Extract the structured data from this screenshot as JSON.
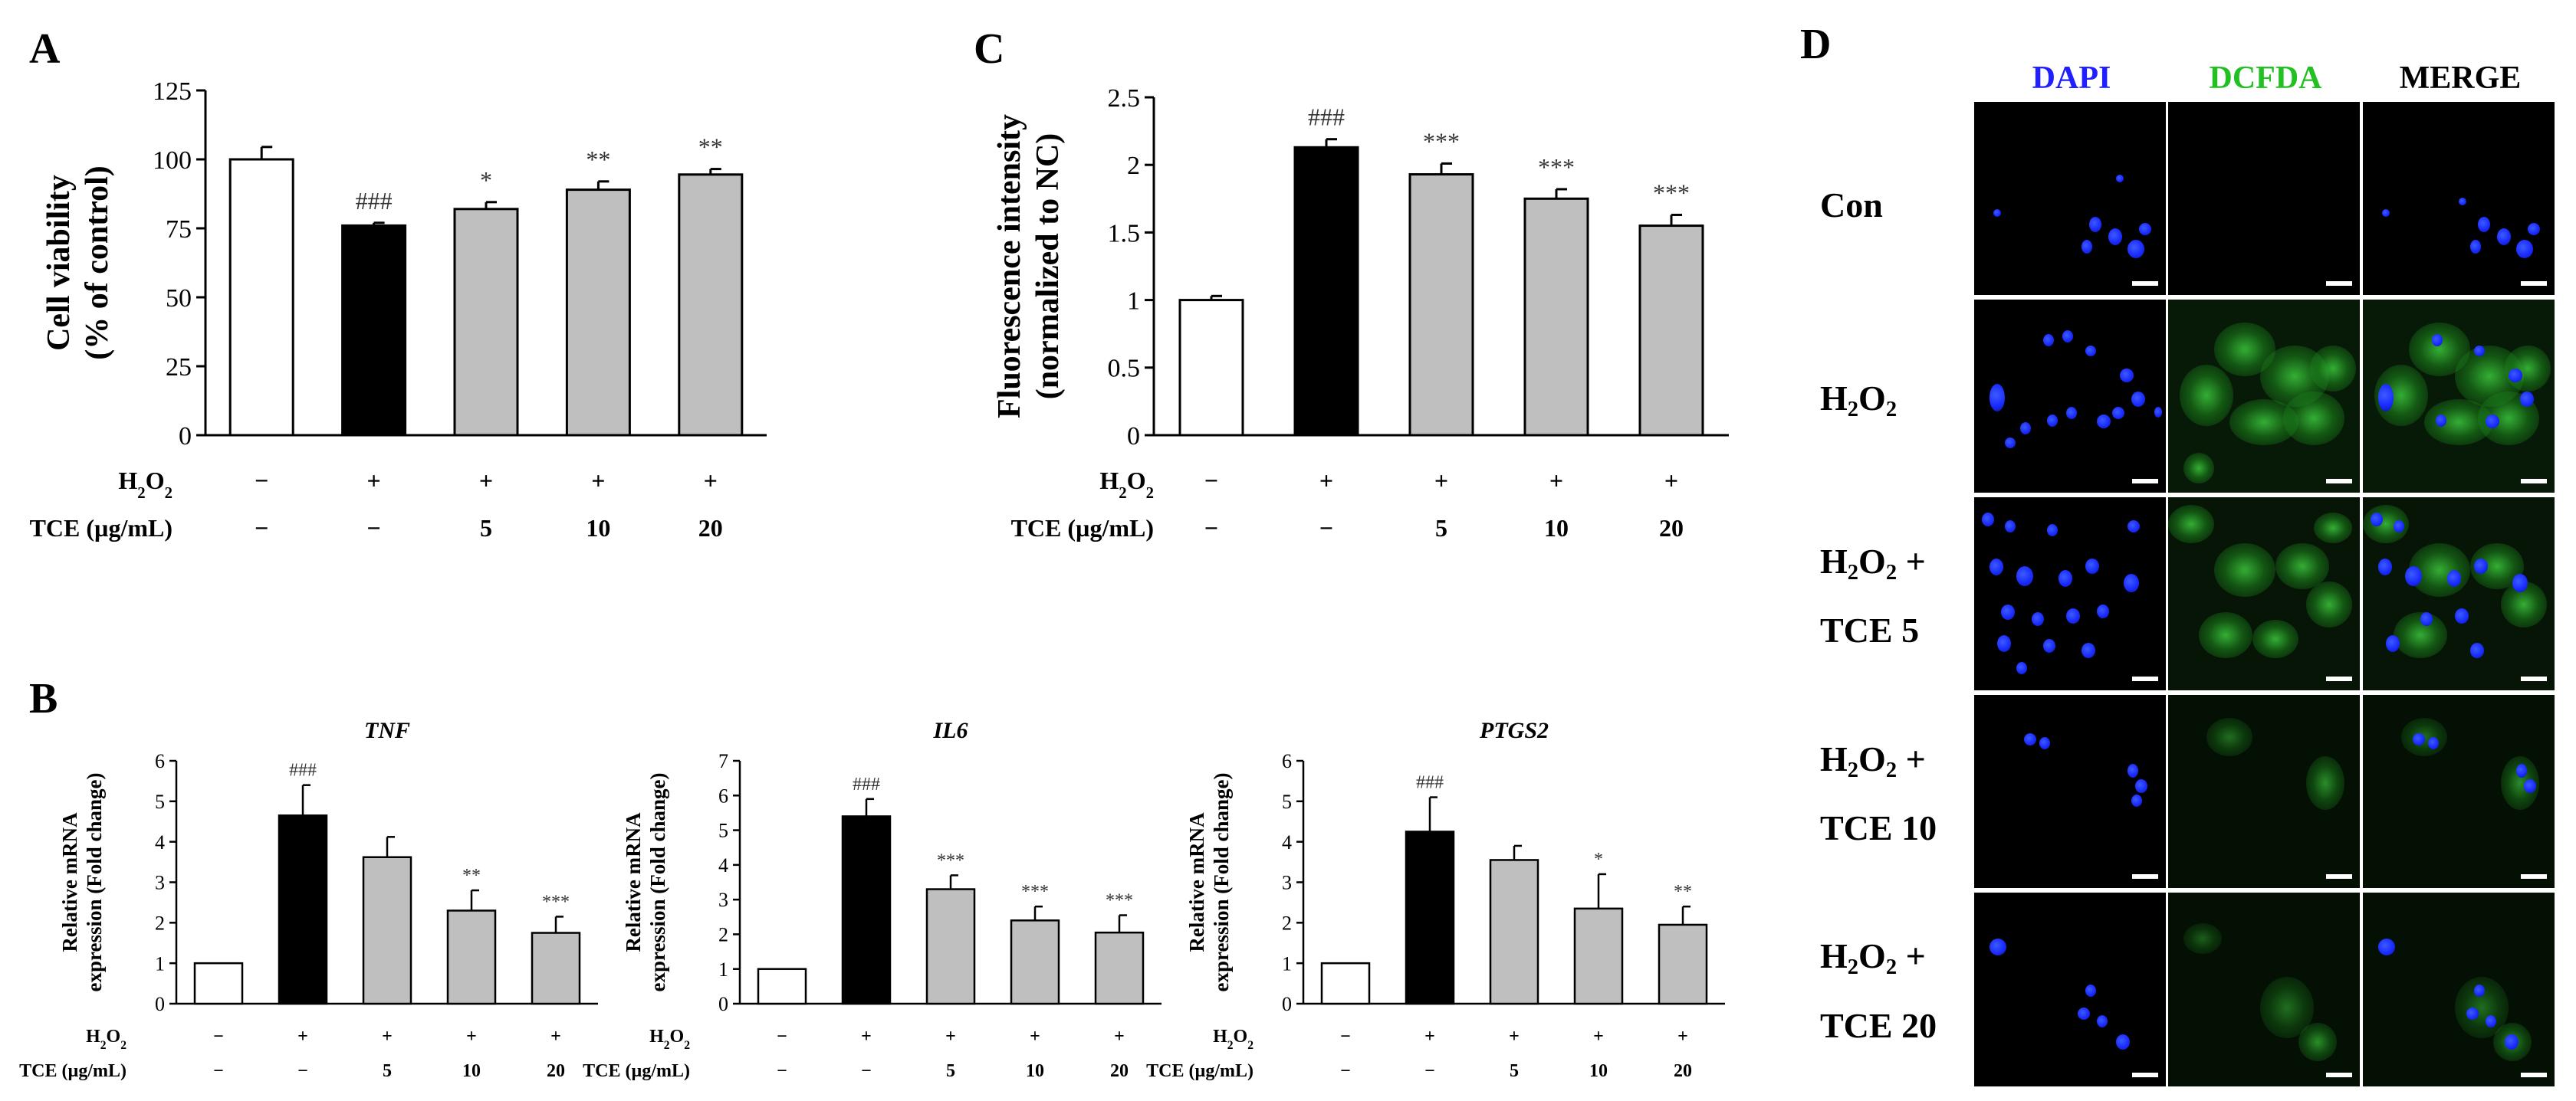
{
  "panels": {
    "A": {
      "letter": "A",
      "ylabel_line1": "Cell viability",
      "ylabel_line2": "(% of control)",
      "h2o2_label": "H2O2",
      "tce_label": "TCE (µg/mL)",
      "h2o2_row": [
        "−",
        "+",
        "+",
        "+",
        "+"
      ],
      "tce_row": [
        "−",
        "−",
        "5",
        "10",
        "20"
      ]
    },
    "B": {
      "letter": "B",
      "h2o2_label": "H2O2",
      "tce_label": "TCE (µg/mL)",
      "h2o2_row": [
        "−",
        "+",
        "+",
        "+",
        "+"
      ],
      "tce_row": [
        "−",
        "−",
        "5",
        "10",
        "20"
      ],
      "ylabel_line1": "Relative mRNA",
      "ylabel_line2": "expression (Fold change)"
    },
    "C": {
      "letter": "C",
      "ylabel_line1": "Fluorescence intensity",
      "ylabel_line2": "(normalized to NC)",
      "h2o2_label": "H2O2",
      "tce_label": "TCE (µg/mL)",
      "h2o2_row": [
        "−",
        "+",
        "+",
        "+",
        "+"
      ],
      "tce_row": [
        "−",
        "−",
        "5",
        "10",
        "20"
      ]
    },
    "D": {
      "letter": "D",
      "columns": [
        "DAPI",
        "DCFDA",
        "MERGE"
      ],
      "column_colors": [
        "#1f1fff",
        "#22c022",
        "#000000"
      ],
      "rows": [
        {
          "line1": "Con",
          "line2": ""
        },
        {
          "line1": "H2O2",
          "line2": ""
        },
        {
          "line1": "H2O2 +",
          "line2": "TCE 5"
        },
        {
          "line1": "H2O2 +",
          "line2": "TCE 10"
        },
        {
          "line1": "H2O2 +",
          "line2": "TCE 20"
        }
      ]
    }
  },
  "chart_data": [
    {
      "id": "A",
      "type": "bar",
      "title": "",
      "categories": [
        "NC",
        "H2O2",
        "H2O2+TCE 5",
        "H2O2+TCE 10",
        "H2O2+TCE 20"
      ],
      "values": [
        100,
        76,
        82,
        89,
        94.5
      ],
      "errors": [
        4.5,
        1,
        2.5,
        3,
        2
      ],
      "significance": [
        "",
        "###",
        "*",
        "**",
        "**"
      ],
      "bar_colors": [
        "#ffffff",
        "#000000",
        "#bfbfbf",
        "#bfbfbf",
        "#bfbfbf"
      ],
      "ylim": [
        0,
        125
      ],
      "yticks": [
        "0",
        "25",
        "50",
        "75",
        "100",
        "125"
      ],
      "ylabel": "Cell viability (% of control)"
    },
    {
      "id": "B-TNF",
      "type": "bar",
      "title": "TNF",
      "categories": [
        "NC",
        "H2O2",
        "H2O2+TCE 5",
        "H2O2+TCE 10",
        "H2O2+TCE 20"
      ],
      "values": [
        1,
        4.65,
        3.62,
        2.3,
        1.75
      ],
      "errors": [
        0,
        0.75,
        0.5,
        0.5,
        0.4
      ],
      "significance": [
        "",
        "###",
        "",
        "**",
        "***"
      ],
      "bar_colors": [
        "#ffffff",
        "#000000",
        "#bfbfbf",
        "#bfbfbf",
        "#bfbfbf"
      ],
      "ylim": [
        0,
        6
      ],
      "yticks": [
        "0",
        "1",
        "2",
        "3",
        "4",
        "5",
        "6"
      ],
      "ylabel": "Relative mRNA expression (Fold change)"
    },
    {
      "id": "B-IL6",
      "type": "bar",
      "title": "IL6",
      "categories": [
        "NC",
        "H2O2",
        "H2O2+TCE 5",
        "H2O2+TCE 10",
        "H2O2+TCE 20"
      ],
      "values": [
        1,
        5.4,
        3.3,
        2.4,
        2.05
      ],
      "errors": [
        0,
        0.5,
        0.4,
        0.4,
        0.5
      ],
      "significance": [
        "",
        "###",
        "***",
        "***",
        "***"
      ],
      "bar_colors": [
        "#ffffff",
        "#000000",
        "#bfbfbf",
        "#bfbfbf",
        "#bfbfbf"
      ],
      "ylim": [
        0,
        7
      ],
      "yticks": [
        "0",
        "1",
        "2",
        "3",
        "4",
        "5",
        "6",
        "7"
      ],
      "ylabel": "Relative mRNA expression (Fold change)"
    },
    {
      "id": "B-PTGS2",
      "type": "bar",
      "title": "PTGS2",
      "categories": [
        "NC",
        "H2O2",
        "H2O2+TCE 5",
        "H2O2+TCE 10",
        "H2O2+TCE 20"
      ],
      "values": [
        1,
        4.25,
        3.55,
        2.35,
        1.95
      ],
      "errors": [
        0,
        0.85,
        0.35,
        0.85,
        0.45
      ],
      "significance": [
        "",
        "###",
        "",
        "*",
        "**"
      ],
      "bar_colors": [
        "#ffffff",
        "#000000",
        "#bfbfbf",
        "#bfbfbf",
        "#bfbfbf"
      ],
      "ylim": [
        0,
        6
      ],
      "yticks": [
        "0",
        "1",
        "2",
        "3",
        "4",
        "5",
        "6"
      ],
      "ylabel": "Relative mRNA expression (Fold change)"
    },
    {
      "id": "C",
      "type": "bar",
      "title": "",
      "categories": [
        "NC",
        "H2O2",
        "H2O2+TCE 5",
        "H2O2+TCE 10",
        "H2O2+TCE 20"
      ],
      "values": [
        1.0,
        2.13,
        1.93,
        1.75,
        1.55
      ],
      "errors": [
        0.03,
        0.06,
        0.08,
        0.07,
        0.08
      ],
      "significance": [
        "",
        "###",
        "***",
        "***",
        "***"
      ],
      "bar_colors": [
        "#ffffff",
        "#000000",
        "#bfbfbf",
        "#bfbfbf",
        "#bfbfbf"
      ],
      "ylim": [
        0,
        2.5
      ],
      "yticks": [
        "0",
        "0.5",
        "1",
        "1.5",
        "2",
        "2.5"
      ],
      "ylabel": "Fluorescence intensity (normalized to NC)"
    }
  ]
}
